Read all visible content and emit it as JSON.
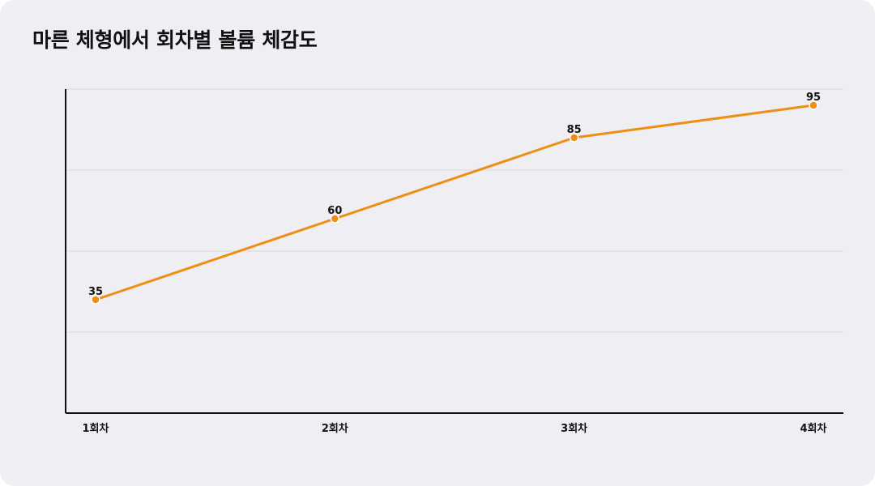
{
  "chart_data": {
    "type": "line",
    "title": "마른 체형에서 회차별 볼륨 체감도",
    "xlabel": "",
    "ylabel": "",
    "categories": [
      "1회차",
      "2회차",
      "3회차",
      "4회차"
    ],
    "series": [
      {
        "values": [
          35,
          60,
          85,
          95
        ]
      }
    ],
    "ylim": [
      0,
      100
    ],
    "grid": true,
    "legend": "none",
    "colors": {
      "line": "#ee8e12",
      "grid": "#d8d8dc",
      "axis": "#111111"
    }
  }
}
